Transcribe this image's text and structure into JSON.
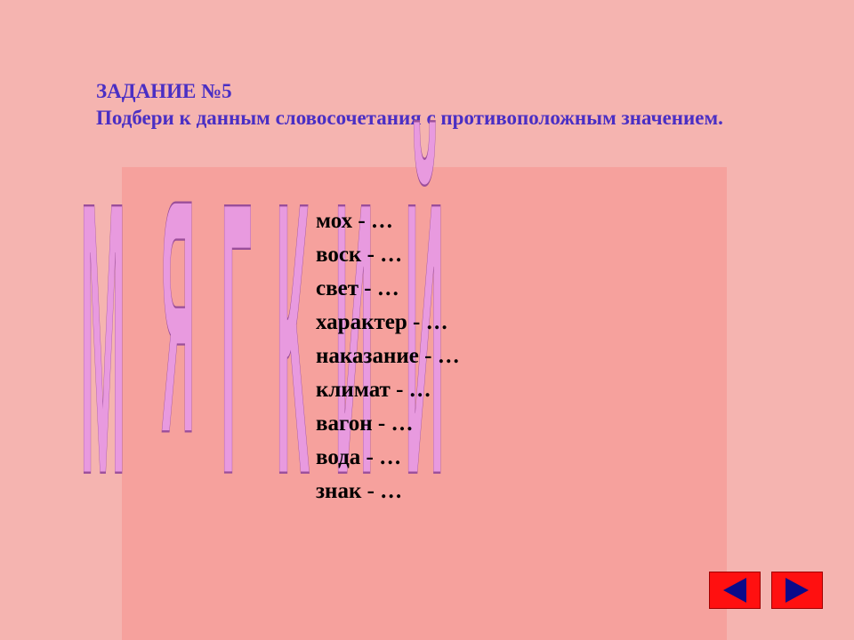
{
  "title": {
    "line1": "ЗАДАНИЕ №5",
    "line2": "Подбери к данным словосочетания с противоположным значением."
  },
  "wordart": {
    "text": "МЯГКИЙ",
    "fill_color": "#e89adf",
    "stroke_color": "#9a4e9a"
  },
  "items": [
    {
      "label": "мох - …"
    },
    {
      "label": "воск - …"
    },
    {
      "label": "свет - …"
    },
    {
      "label": "характер - …"
    },
    {
      "label": "наказание - …"
    },
    {
      "label": "климат - …"
    },
    {
      "label": "вагон - …"
    },
    {
      "label": "вода - …"
    },
    {
      "label": "знак - …"
    }
  ],
  "colors": {
    "background": "#f5b4b0",
    "inner_panel": "#f6a19d",
    "title_color": "#4a2fc4",
    "button_fill": "#ff1010",
    "arrow_fill": "#0a0a8a"
  }
}
